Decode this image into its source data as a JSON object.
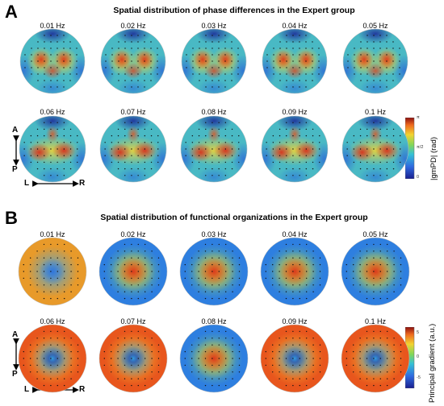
{
  "panelA": {
    "letter": "A",
    "title": "Spatial distribution of phase differences in the Expert group",
    "row1_freqs": [
      "0.01 Hz",
      "0.02 Hz",
      "0.03 Hz",
      "0.04 Hz",
      "0.05 Hz"
    ],
    "row2_freqs": [
      "0.06 Hz",
      "0.07 Hz",
      "0.08 Hz",
      "0.09 Hz",
      "0.1 Hz"
    ],
    "colorbar_label": "|gmPD| (rad)",
    "colorbar_ticks": [
      "π",
      "π/2",
      "0"
    ]
  },
  "panelB": {
    "letter": "B",
    "title": "Spatial distribution of functional organizations in the Expert group",
    "row1_freqs": [
      "0.01 Hz",
      "0.02 Hz",
      "0.03 Hz",
      "0.04 Hz",
      "0.05 Hz"
    ],
    "row2_freqs": [
      "0.06 Hz",
      "0.07 Hz",
      "0.08 Hz",
      "0.09 Hz",
      "0.1 Hz"
    ],
    "colorbar_label": "Principal gradient (a.u.)",
    "colorbar_ticks": [
      "5",
      "0",
      "-5"
    ]
  },
  "orientation": {
    "anterior": "A",
    "posterior": "P",
    "left": "L",
    "right": "R"
  },
  "colors": {
    "low": "#2b3ea8",
    "mid": "#3fc08a",
    "high": "#c0201a"
  }
}
